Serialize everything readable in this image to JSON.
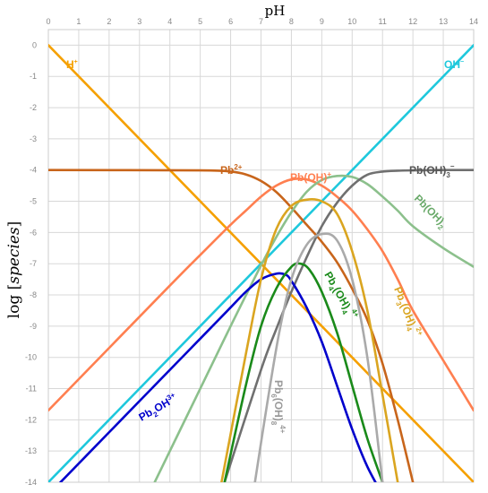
{
  "chart_data": {
    "type": "line",
    "xlabel": "pH",
    "ylabel_plain": "log [",
    "ylabel_italic": "species",
    "ylabel_close": "]",
    "xlim": [
      0,
      14
    ],
    "ylim": [
      -14,
      0.5
    ],
    "grid": true,
    "x_ticks": [
      "0",
      "1",
      "2",
      "3",
      "4",
      "5",
      "6",
      "7",
      "8",
      "9",
      "10",
      "11",
      "12",
      "13",
      "14"
    ],
    "y_ticks": [
      "0",
      "-1",
      "-2",
      "-3",
      "-4",
      "-5",
      "-6",
      "-7",
      "-8",
      "-9",
      "-10",
      "-11",
      "-12",
      "-13",
      "-14"
    ],
    "colors": {
      "h": "#f5a000",
      "oh": "#1ec8dc",
      "pb2": "#c8651b",
      "pboh": "#ff7f50",
      "pboh2": "#8cc08c",
      "pboh3": "#707070",
      "pb2oh": "#0000cc",
      "pb3oh4": "#daa520",
      "pb4oh4": "#1a8a1a",
      "pb6oh8": "#aaaaaa"
    },
    "series": [
      {
        "key": "h",
        "x": [
          0,
          14
        ],
        "y": [
          0,
          -14
        ]
      },
      {
        "key": "oh",
        "x": [
          0,
          14
        ],
        "y": [
          -14,
          0
        ]
      },
      {
        "key": "pb2",
        "x": [
          0,
          5,
          6,
          6.5,
          7,
          7.5,
          8,
          8.5,
          9,
          9.5,
          10,
          10.5,
          11,
          11.5,
          12
        ],
        "y": [
          -4,
          -4.01,
          -4.05,
          -4.14,
          -4.35,
          -4.7,
          -5.2,
          -5.75,
          -6.3,
          -6.95,
          -7.8,
          -8.8,
          -10.2,
          -12.0,
          -14.0
        ]
      },
      {
        "key": "pboh",
        "x": [
          0,
          4,
          5,
          6,
          6.5,
          7,
          7.5,
          8,
          8.5,
          9,
          9.5,
          10,
          10.5,
          11,
          11.5,
          12,
          13,
          14
        ],
        "y": [
          -11.7,
          -7.7,
          -6.72,
          -5.75,
          -5.3,
          -4.85,
          -4.5,
          -4.3,
          -4.3,
          -4.5,
          -4.85,
          -5.3,
          -5.9,
          -6.6,
          -7.5,
          -8.5,
          -10.1,
          -11.7
        ]
      },
      {
        "key": "pboh2",
        "x": [
          3.5,
          5,
          6,
          7,
          7.5,
          8,
          8.5,
          9,
          9.5,
          10,
          10.5,
          11,
          11.5,
          12,
          13,
          14
        ],
        "y": [
          -14,
          -11,
          -9,
          -7.05,
          -6.15,
          -5.35,
          -4.7,
          -4.32,
          -4.19,
          -4.22,
          -4.45,
          -4.85,
          -5.3,
          -5.8,
          -6.5,
          -7.1
        ]
      },
      {
        "key": "pboh3",
        "x": [
          5.8,
          7,
          7.5,
          8,
          8.5,
          9,
          9.5,
          10,
          10.5,
          11,
          11.5,
          12,
          13,
          14
        ],
        "y": [
          -14,
          -10.4,
          -9.1,
          -7.9,
          -6.8,
          -5.8,
          -5.05,
          -4.5,
          -4.15,
          -4.05,
          -4.02,
          -4.01,
          -4.0,
          -4.0
        ]
      },
      {
        "key": "pb2oh",
        "x": [
          0,
          2,
          4,
          5,
          6,
          6.5,
          7,
          7.5,
          7.8,
          8,
          8.5,
          9,
          9.5,
          10,
          10.5,
          11
        ],
        "y": [
          -14.4,
          -12.4,
          -10.4,
          -9.4,
          -8.4,
          -7.9,
          -7.5,
          -7.32,
          -7.35,
          -7.55,
          -8.4,
          -9.5,
          -10.9,
          -12.3,
          -13.5,
          -14.4
        ]
      },
      {
        "key": "pb3oh4",
        "x": [
          5.7,
          6.5,
          7,
          7.5,
          8,
          8.5,
          9,
          9.5,
          10,
          10.5,
          11,
          11.5
        ],
        "y": [
          -14,
          -9.9,
          -7.5,
          -5.9,
          -5.15,
          -4.95,
          -5.0,
          -5.4,
          -6.6,
          -8.5,
          -11.2,
          -14
        ]
      },
      {
        "key": "pb4oh4",
        "x": [
          5.8,
          6.5,
          7,
          7.5,
          8,
          8.3,
          8.6,
          9,
          9.5,
          10,
          10.5,
          11
        ],
        "y": [
          -14,
          -10.9,
          -9.0,
          -7.8,
          -7.1,
          -7.0,
          -7.2,
          -7.9,
          -9.2,
          -10.9,
          -12.6,
          -14
        ]
      },
      {
        "key": "pb6oh8",
        "x": [
          6.8,
          7.2,
          7.6,
          8,
          8.5,
          9,
          9.5,
          10,
          10.5,
          11
        ],
        "y": [
          -14,
          -11.5,
          -9.2,
          -7.5,
          -6.4,
          -6.05,
          -6.25,
          -7.5,
          -10,
          -14
        ]
      }
    ],
    "labels": {
      "h": "H",
      "h_sup": "+",
      "oh": "OH",
      "oh_sup": "−",
      "pb2": "Pb",
      "pb2_sup": "2+",
      "pboh": "Pb(OH)",
      "pboh_sup": "+",
      "pboh3": "Pb(OH)",
      "pboh3_sub": "3",
      "pboh3_sup": "−",
      "pboh2": "Pb(OH)",
      "pboh2_sub": "2",
      "pb2oh_a": "Pb",
      "pb2oh_sub": "2",
      "pb2oh_b": "OH",
      "pb2oh_sup": "3+",
      "pb4oh4_a": "Pb",
      "pb4oh4_sub1": "4",
      "pb4oh4_b": "(OH)",
      "pb4oh4_sub2": "4",
      "pb4oh4_sup": "4+",
      "pb3oh4_a": "Pb",
      "pb3oh4_sub1": "3",
      "pb3oh4_b": "(OH)",
      "pb3oh4_sub2": "4",
      "pb3oh4_sup": "2+",
      "pb6oh8_a": "Pb",
      "pb6oh8_sub1": "6",
      "pb6oh8_b": "(OH)",
      "pb6oh8_sub2": "8",
      "pb6oh8_sup": "4+"
    }
  }
}
